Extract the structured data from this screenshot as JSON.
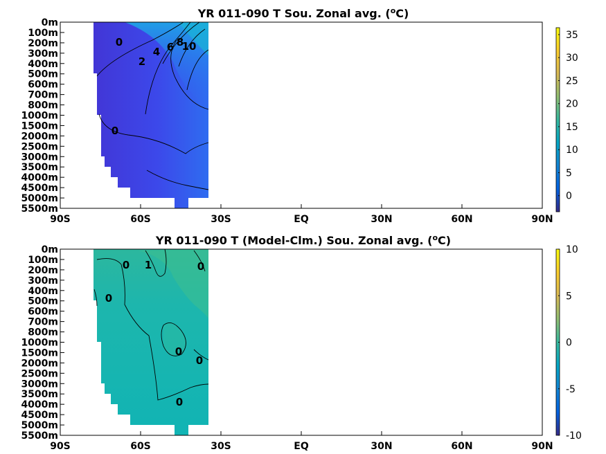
{
  "chart_data": [
    {
      "type": "heatmap",
      "title": "YR 011-090 T Sou. Zonal avg. (",
      "title_sup": "o",
      "title_tail": "C)",
      "x_ticks": [
        "90S",
        "60S",
        "30S",
        "EQ",
        "30N",
        "60N",
        "90N"
      ],
      "x_values": [
        -90,
        -60,
        -30,
        0,
        30,
        60,
        90
      ],
      "y_ticks": [
        "0m",
        "100m",
        "200m",
        "300m",
        "400m",
        "500m",
        "600m",
        "700m",
        "800m",
        "1000m",
        "1500m",
        "2000m",
        "2500m",
        "3000m",
        "3500m",
        "4000m",
        "4500m",
        "5000m",
        "5500m"
      ],
      "colorbar": {
        "ticks": [
          "35",
          "30",
          "25",
          "20",
          "15",
          "10",
          "5",
          "0"
        ],
        "values": [
          35,
          30,
          25,
          20,
          15,
          10,
          5,
          0
        ],
        "range": [
          -3.5,
          36.5
        ]
      },
      "contour_labels": [
        "0",
        "2",
        "4",
        "6",
        "8",
        "10",
        "0"
      ],
      "lat_range": [
        -78,
        -35
      ]
    },
    {
      "type": "heatmap",
      "title": "YR 011-090 T (Model-Clm.) Sou. Zonal avg. (",
      "title_sup": "o",
      "title_tail": "C)",
      "x_ticks": [
        "90S",
        "60S",
        "30S",
        "EQ",
        "30N",
        "60N",
        "90N"
      ],
      "x_values": [
        -90,
        -60,
        -30,
        0,
        30,
        60,
        90
      ],
      "y_ticks": [
        "0m",
        "100m",
        "200m",
        "300m",
        "400m",
        "500m",
        "600m",
        "700m",
        "800m",
        "1000m",
        "1500m",
        "2000m",
        "2500m",
        "3000m",
        "3500m",
        "4000m",
        "4500m",
        "5000m",
        "5500m"
      ],
      "colorbar": {
        "ticks": [
          "10",
          "5",
          "0",
          "-5",
          "-10"
        ],
        "values": [
          10,
          5,
          0,
          -5,
          -10
        ],
        "range": [
          -10,
          10
        ]
      },
      "contour_labels": [
        "0",
        "1",
        "0",
        "0",
        "0",
        "0",
        "0"
      ],
      "lat_range": [
        -78,
        -35
      ]
    }
  ]
}
